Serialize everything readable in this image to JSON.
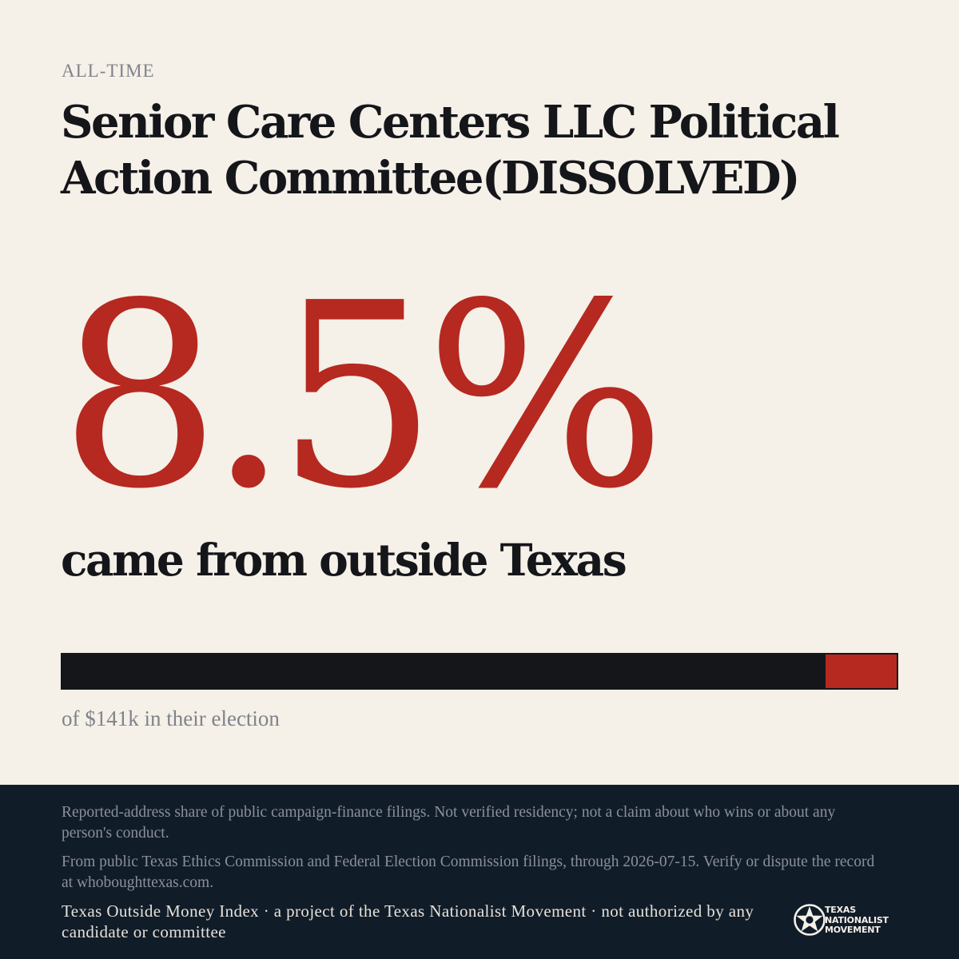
{
  "header": {
    "eyebrow": "ALL-TIME",
    "title": "Senior Care Centers LLC Political Action Committee(DISSOLVED)"
  },
  "stat": {
    "percent_text": "8.5%",
    "outside_share": 0.085,
    "subline": "came from outside Texas",
    "caption": "of $141k in their election"
  },
  "colors": {
    "accent": "#b52920",
    "ink": "#14161a",
    "background": "#f5f0e8",
    "footer_bg": "#111c29"
  },
  "footer": {
    "disclaimer": "Reported-address share of public campaign-finance filings. Not verified residency; not a claim about who wins or about any person's conduct.",
    "source": "From public Texas Ethics Commission and Federal Election Commission filings, through 2026-07-15. Verify or dispute the record at whoboughttexas.com.",
    "credit": "Texas Outside Money Index · a project of the Texas Nationalist Movement · not authorized by any candidate or committee",
    "logo": {
      "icon": "star-seal-icon",
      "line1": "TEXAS",
      "line2": "NATIONALIST",
      "line3": "MOVEMENT"
    }
  }
}
